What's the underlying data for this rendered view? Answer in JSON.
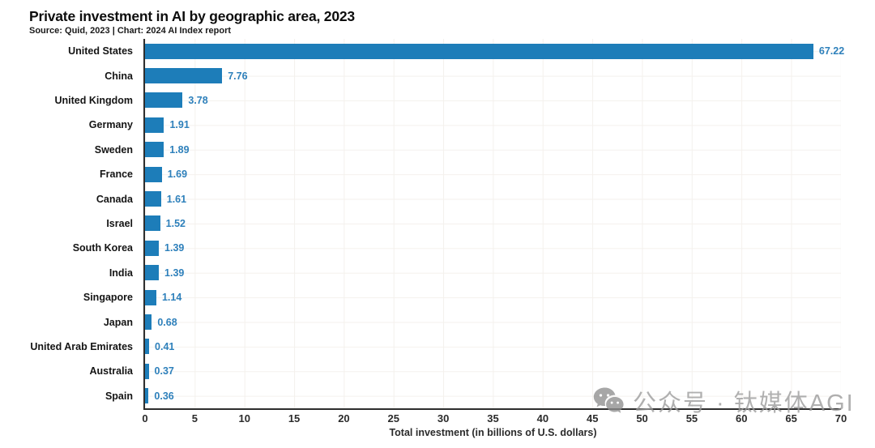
{
  "header": {
    "title": "Private investment in AI by geographic area, 2023",
    "subtitle": "Source: Quid, 2023 | Chart: 2024 AI Index report"
  },
  "chart_data": {
    "type": "bar",
    "orientation": "horizontal",
    "title": "Private investment in AI by geographic area, 2023",
    "categories": [
      "United States",
      "China",
      "United Kingdom",
      "Germany",
      "Sweden",
      "France",
      "Canada",
      "Israel",
      "South Korea",
      "India",
      "Singapore",
      "Japan",
      "United Arab Emirates",
      "Australia",
      "Spain"
    ],
    "values": [
      67.22,
      7.76,
      3.78,
      1.91,
      1.89,
      1.69,
      1.61,
      1.52,
      1.39,
      1.39,
      1.14,
      0.68,
      0.41,
      0.37,
      0.36
    ],
    "xlabel": "Total investment (in billions of U.S. dollars)",
    "ylabel": "",
    "xlim": [
      0,
      70
    ],
    "xticks": [
      0,
      5,
      10,
      15,
      20,
      25,
      30,
      35,
      40,
      45,
      50,
      55,
      60,
      65,
      70
    ],
    "grid": "on",
    "legend": "none",
    "bar_color": "#1d7db9",
    "value_label_color": "#2e80bb",
    "axis_color": "#2e2e2e"
  },
  "watermark": {
    "icon": "wechat-icon",
    "text": "公众号 · 钛媒体AGI",
    "color": "#9a9a9a"
  }
}
